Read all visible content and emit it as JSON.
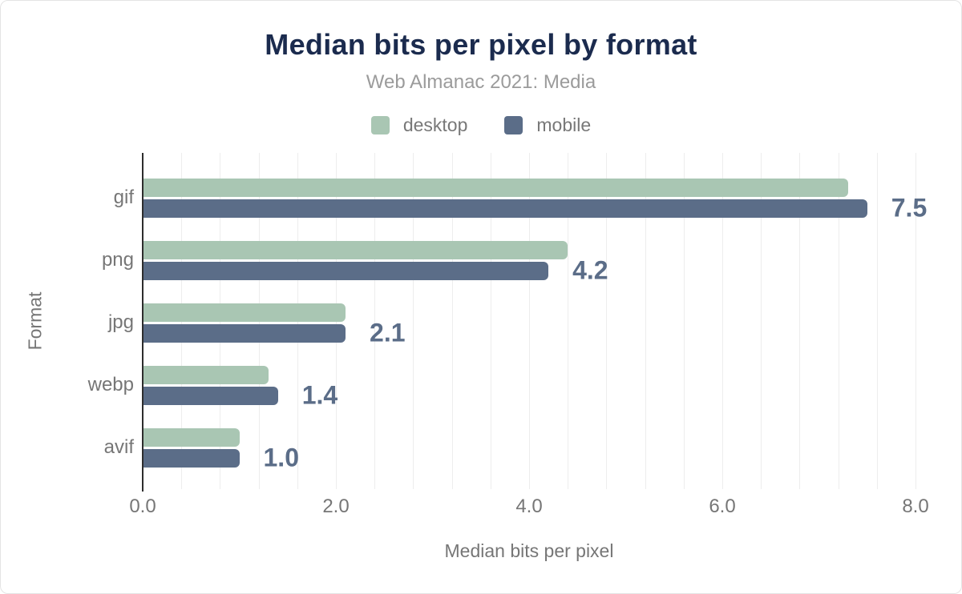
{
  "header": {
    "title": "Median bits per pixel by format",
    "subtitle": "Web Almanac 2021: Media"
  },
  "chart_data": {
    "type": "bar",
    "orientation": "horizontal",
    "title": "Median bits per pixel by format",
    "subtitle": "Web Almanac 2021: Media",
    "categories": [
      "gif",
      "png",
      "jpg",
      "webp",
      "avif"
    ],
    "series": [
      {
        "name": "desktop",
        "color": "#a9c6b3",
        "values": [
          7.3,
          4.4,
          2.1,
          1.3,
          1.0
        ]
      },
      {
        "name": "mobile",
        "color": "#5b6d88",
        "values": [
          7.5,
          4.2,
          2.1,
          1.4,
          1.0
        ]
      }
    ],
    "value_labels": [
      "7.5",
      "4.2",
      "2.1",
      "1.4",
      "1.0"
    ],
    "xlabel": "Median bits per pixel",
    "ylabel": "Format",
    "xlim": [
      0,
      8
    ],
    "x_ticks": [
      "0.0",
      "2.0",
      "4.0",
      "6.0",
      "8.0"
    ],
    "grid": true,
    "grid_step": 0.4,
    "legend_position": "top",
    "colors": {
      "title": "#1b2b4e",
      "subtitle": "#9b9b9b",
      "axis_text": "#767676",
      "grid": "#ededed",
      "axis_line": "#2d2d2d",
      "desktop": "#a9c6b3",
      "mobile": "#5b6d88",
      "value_label": "#5b6d88"
    }
  }
}
